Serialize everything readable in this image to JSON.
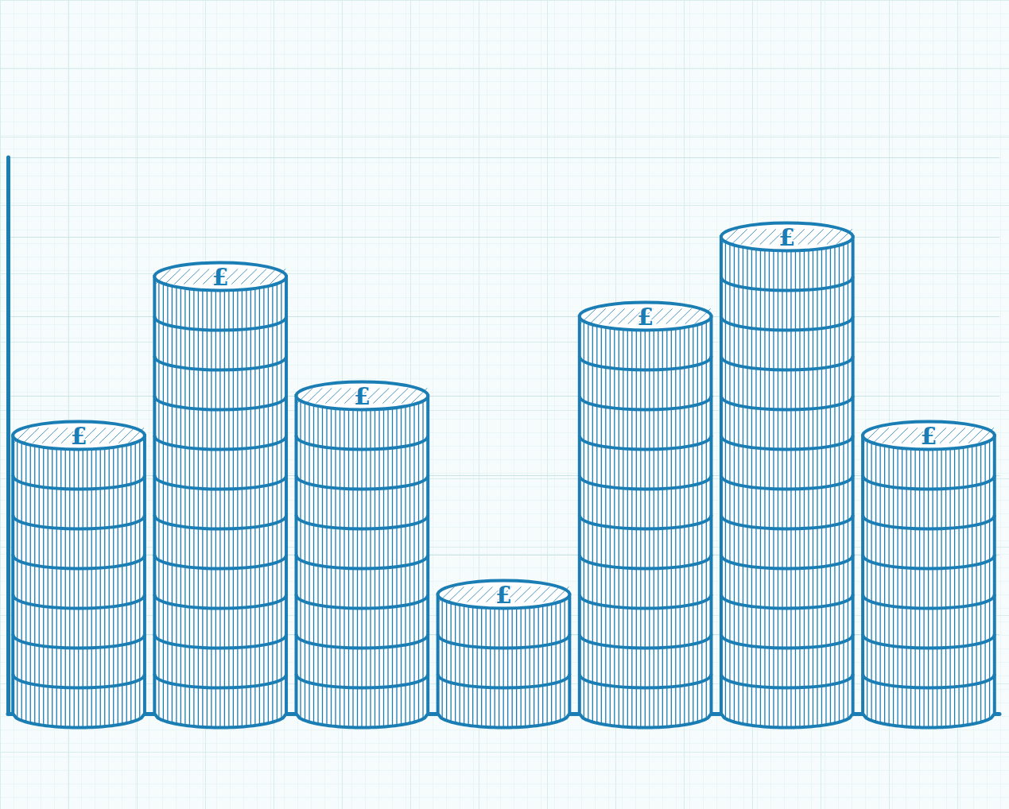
{
  "chart_data": {
    "type": "bar",
    "categories": [
      null,
      null,
      null,
      null,
      null,
      null,
      null
    ],
    "values": [
      7,
      11,
      8,
      3,
      10,
      12,
      7
    ],
    "annotations": [
      "£",
      "£",
      "£",
      "£",
      "£",
      "£",
      "£"
    ],
    "color": "#1a7db4",
    "ylim": [
      0,
      14
    ],
    "yticks": [
      0,
      2,
      4,
      6,
      8,
      10,
      12,
      14
    ],
    "grid": true,
    "tick_labels": false
  }
}
